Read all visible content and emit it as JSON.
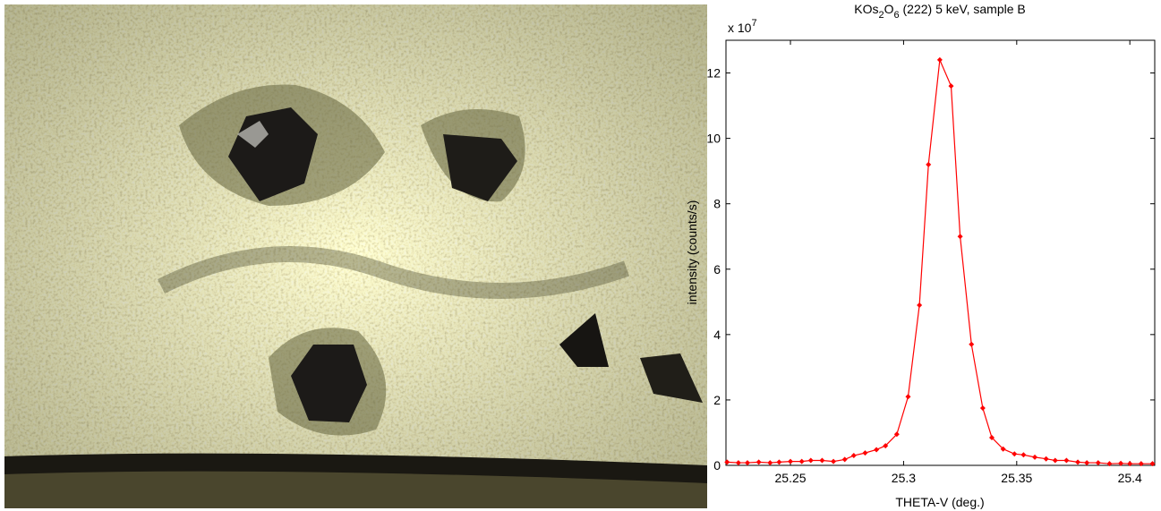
{
  "chart_data": {
    "type": "line",
    "title": "KOs2O6 (222) 5 keV, sample B",
    "y_multiplier": {
      "base": "x 10",
      "exponent": "7"
    },
    "xlabel": "THETA-V (deg.)",
    "ylabel": "intensity (counts/s)",
    "xlim": [
      25.2215,
      25.411
    ],
    "ylim": [
      0,
      13
    ],
    "xticks": [
      25.25,
      25.3,
      25.35,
      25.4
    ],
    "yticks": [
      0,
      2,
      4,
      6,
      8,
      10,
      12
    ],
    "grid": false,
    "series": [
      {
        "color": "#ff0000",
        "x": [
          25.222,
          25.227,
          25.231,
          25.236,
          25.241,
          25.245,
          25.25,
          25.255,
          25.259,
          25.264,
          25.269,
          25.274,
          25.278,
          25.283,
          25.288,
          25.292,
          25.297,
          25.302,
          25.307,
          25.311,
          25.316,
          25.321,
          25.325,
          25.33,
          25.335,
          25.339,
          25.344,
          25.349,
          25.353,
          25.358,
          25.363,
          25.367,
          25.372,
          25.377,
          25.381,
          25.386,
          25.391,
          25.396,
          25.4,
          25.405,
          25.41
        ],
        "values": [
          0.1,
          0.08,
          0.08,
          0.1,
          0.08,
          0.1,
          0.12,
          0.12,
          0.15,
          0.15,
          0.12,
          0.18,
          0.3,
          0.38,
          0.48,
          0.6,
          0.95,
          2.1,
          4.9,
          9.2,
          12.4,
          11.6,
          7.0,
          3.7,
          1.75,
          0.85,
          0.5,
          0.35,
          0.32,
          0.25,
          0.2,
          0.15,
          0.15,
          0.1,
          0.08,
          0.08,
          0.05,
          0.06,
          0.05,
          0.05,
          0.05
        ]
      }
    ]
  }
}
